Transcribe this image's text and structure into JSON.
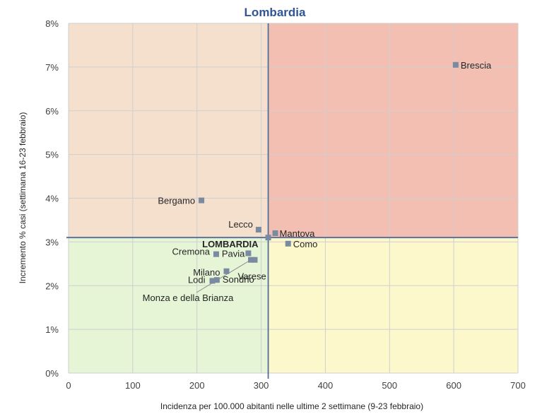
{
  "chart_data": {
    "type": "scatter",
    "title": "Lombardia",
    "xlabel": "Incidenza per 100.000 abitanti nelle ultime 2 settimane (9-23 febbraio)",
    "ylabel": "Incremento % casi (settimana 16-23 febbraio)",
    "xlim": [
      0,
      700
    ],
    "ylim": [
      0,
      8
    ],
    "x_ticks": [
      "0",
      "100",
      "200",
      "300",
      "400",
      "500",
      "600",
      "700"
    ],
    "y_ticks": [
      "0%",
      "1%",
      "2%",
      "3%",
      "4%",
      "5%",
      "6%",
      "7%",
      "8%"
    ],
    "grid": true,
    "reference_lines": {
      "x": 311,
      "y": 3.1
    },
    "quadrant_colors": {
      "top_left": "#f5dfcd",
      "top_right": "#f4bfb3",
      "bottom_left": "#e6f5d6",
      "bottom_right": "#fdf7cc"
    },
    "point_color": "#7a8aa0",
    "line_color": "#4f6e99",
    "points": [
      {
        "label": "Brescia",
        "x": 603,
        "y": 7.05
      },
      {
        "label": "Bergamo",
        "x": 207,
        "y": 3.95
      },
      {
        "label": "Lecco",
        "x": 296,
        "y": 3.28
      },
      {
        "label": "Mantova",
        "x": 322,
        "y": 3.2
      },
      {
        "label": "LOMBARDIA",
        "x": 311,
        "y": 3.1
      },
      {
        "label": "Como",
        "x": 342,
        "y": 2.96
      },
      {
        "label": "Cremona",
        "x": 230,
        "y": 2.72
      },
      {
        "label": "Pavia",
        "x": 280,
        "y": 2.74
      },
      {
        "label": "Varese",
        "x": 290,
        "y": 2.59
      },
      {
        "label": "Milano",
        "x": 246,
        "y": 2.33
      },
      {
        "label": "Lodi",
        "x": 224,
        "y": 2.11
      },
      {
        "label": "Sondrio",
        "x": 231,
        "y": 2.13
      },
      {
        "label": "Monza e della Brianza",
        "x": 284,
        "y": 2.59
      }
    ]
  }
}
